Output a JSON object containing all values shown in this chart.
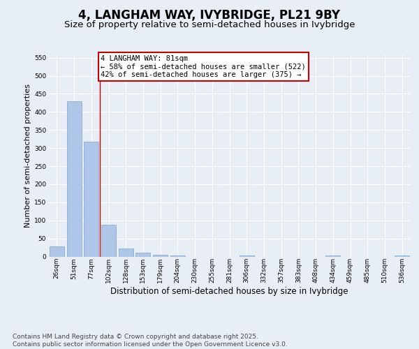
{
  "title": "4, LANGHAM WAY, IVYBRIDGE, PL21 9BY",
  "subtitle": "Size of property relative to semi-detached houses in Ivybridge",
  "xlabel": "Distribution of semi-detached houses by size in Ivybridge",
  "ylabel": "Number of semi-detached properties",
  "categories": [
    "26sqm",
    "51sqm",
    "77sqm",
    "102sqm",
    "128sqm",
    "153sqm",
    "179sqm",
    "204sqm",
    "230sqm",
    "255sqm",
    "281sqm",
    "306sqm",
    "332sqm",
    "357sqm",
    "383sqm",
    "408sqm",
    "434sqm",
    "459sqm",
    "485sqm",
    "510sqm",
    "536sqm"
  ],
  "values": [
    28,
    430,
    318,
    88,
    22,
    10,
    5,
    3,
    0,
    0,
    0,
    3,
    0,
    0,
    0,
    0,
    3,
    0,
    0,
    0,
    3
  ],
  "bar_color": "#aec6e8",
  "bar_edge_color": "#8ab0d0",
  "vline_x": 2.5,
  "vline_color": "#cc0000",
  "annotation_text": "4 LANGHAM WAY: 81sqm\n← 58% of semi-detached houses are smaller (522)\n42% of semi-detached houses are larger (375) →",
  "annotation_box_color": "#ffffff",
  "annotation_box_edge_color": "#cc0000",
  "ylim": [
    0,
    560
  ],
  "yticks": [
    0,
    50,
    100,
    150,
    200,
    250,
    300,
    350,
    400,
    450,
    500,
    550
  ],
  "background_color": "#e8eef6",
  "plot_bg_color": "#e8eef6",
  "footer_text": "Contains HM Land Registry data © Crown copyright and database right 2025.\nContains public sector information licensed under the Open Government Licence v3.0.",
  "title_fontsize": 12,
  "subtitle_fontsize": 9.5,
  "xlabel_fontsize": 8.5,
  "ylabel_fontsize": 8,
  "tick_fontsize": 6.5,
  "annotation_fontsize": 7.5,
  "footer_fontsize": 6.5
}
